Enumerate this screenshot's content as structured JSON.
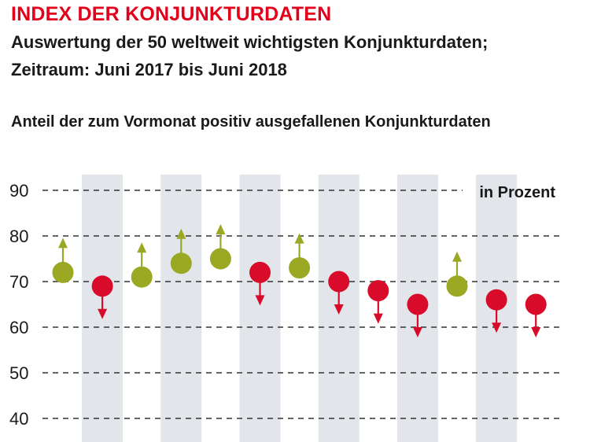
{
  "header": {
    "title": "INDEX DER KONJUNKTURDATEN",
    "subtitle_line1": "Auswertung der 50 weltweit wichtigsten Konjunkturdaten;",
    "subtitle_line2": "Zeitraum: Juni 2017 bis Juni 2018",
    "chart_heading": "Anteil der zum Vormonat positiv ausgefallenen Konjunkturdaten"
  },
  "colors": {
    "title": "#e2001a",
    "up": "#9aa824",
    "down": "#d90b2b",
    "band": "#e2e6ea",
    "grid": "#333333",
    "text": "#1a1a1a"
  },
  "chart_data": {
    "type": "scatter",
    "ylabel": "in Prozent",
    "ylim": [
      40,
      90
    ],
    "yticks": [
      90,
      80,
      70,
      60,
      50,
      40
    ],
    "grid": "dashed horizontal",
    "values": [
      72,
      69,
      71,
      74,
      75,
      72,
      73,
      70,
      68,
      65,
      69,
      66,
      65
    ],
    "directions": [
      "up",
      "down",
      "up",
      "up",
      "up",
      "down",
      "up",
      "down",
      "down",
      "down",
      "up",
      "down",
      "down"
    ]
  }
}
